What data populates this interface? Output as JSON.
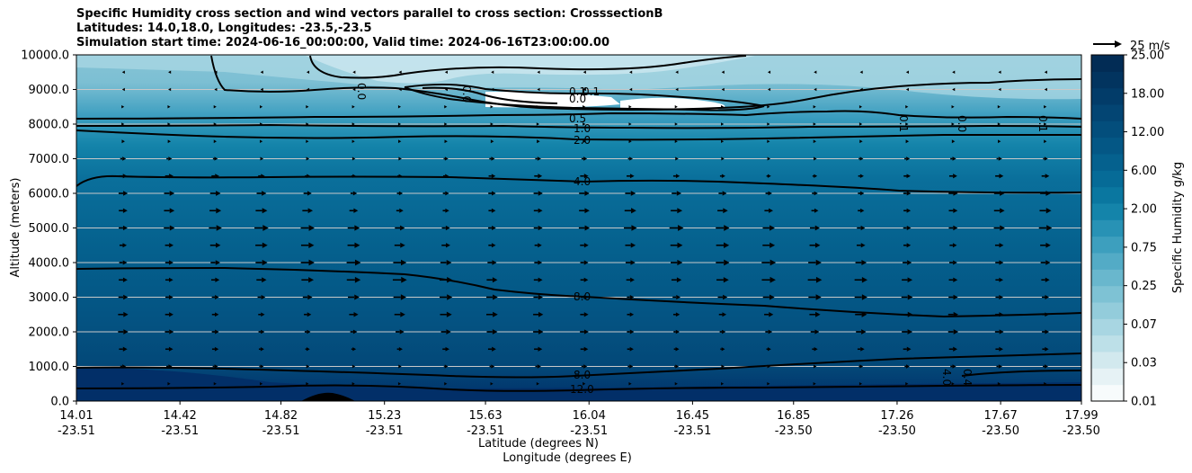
{
  "chart_data": {
    "type": "heatmap",
    "title_lines": [
      "Specific Humidity cross section and wind vectors parallel to cross section: CrosssectionB",
      "Latitudes: 14.0,18.0, Longitudes: -23.5,-23.5",
      "Simulation start time: 2024-06-16_00:00:00, Valid time: 2024-06-16T23:00:00.00"
    ],
    "xlabel": "Latitude (degrees N)",
    "xlabel2": "Longitude (degrees E)",
    "ylabel": "Altitude (meters)",
    "ylim": [
      0,
      10000
    ],
    "xlim": [
      14.01,
      17.99
    ],
    "y_ticks": [
      0,
      1000,
      2000,
      3000,
      4000,
      5000,
      6000,
      7000,
      8000,
      9000,
      10000
    ],
    "y_tick_labels": [
      "0.0",
      "1000.0",
      "2000.0",
      "3000.0",
      "4000.0",
      "5000.0",
      "6000.0",
      "7000.0",
      "8000.0",
      "9000.0",
      "10000.0"
    ],
    "x_ticks": [
      {
        "lat": "14.01",
        "lon": "-23.51",
        "value": 14.01
      },
      {
        "lat": "14.42",
        "lon": "-23.51",
        "value": 14.42
      },
      {
        "lat": "14.82",
        "lon": "-23.51",
        "value": 14.82
      },
      {
        "lat": "15.23",
        "lon": "-23.51",
        "value": 15.23
      },
      {
        "lat": "15.63",
        "lon": "-23.51",
        "value": 15.63
      },
      {
        "lat": "16.04",
        "lon": "-23.51",
        "value": 16.04
      },
      {
        "lat": "16.45",
        "lon": "-23.51",
        "value": 16.45
      },
      {
        "lat": "16.85",
        "lon": "-23.50",
        "value": 16.85
      },
      {
        "lat": "17.26",
        "lon": "-23.50",
        "value": 17.26
      },
      {
        "lat": "17.67",
        "lon": "-23.50",
        "value": 17.67
      },
      {
        "lat": "17.99",
        "lon": "-23.50",
        "value": 17.99
      }
    ],
    "grid": "horizontal",
    "colorbar": {
      "label": "Specific Humidity g/kg",
      "tick_labels": [
        "0.01",
        "0.03",
        "0.07",
        "0.25",
        "0.75",
        "2.00",
        "6.00",
        "12.00",
        "18.00",
        "25.00"
      ],
      "colors": [
        "#f7fbfc",
        "#e6f2f5",
        "#d2e9ee",
        "#bde0e8",
        "#a8d6e2",
        "#93ccdb",
        "#7ec2d4",
        "#69b7cd",
        "#53abc6",
        "#3d9fbe",
        "#2892b5",
        "#1484aa",
        "#0a77a0",
        "#066b97",
        "#05618e",
        "#045785",
        "#034e7c",
        "#034573",
        "#023c69",
        "#02345f",
        "#022c55"
      ]
    },
    "contour_lines": [
      {
        "level": "0.0",
        "altitude_m": 9000
      },
      {
        "level": "0.1",
        "altitude_m": 8750
      },
      {
        "level": "0.5",
        "altitude_m": 8100
      },
      {
        "level": "1.0",
        "altitude_m": 7900
      },
      {
        "level": "2.0",
        "altitude_m": 7600
      },
      {
        "level": "4.0",
        "altitude_m": 6400
      },
      {
        "level": "8.0",
        "altitude_m": 3000
      },
      {
        "level": "8.0",
        "altitude_m": 800
      },
      {
        "level": "12.0",
        "altitude_m": 350
      }
    ],
    "contour_labels": [
      "0.0",
      "0.0",
      "0.1",
      "0.0",
      "0.1",
      "0.0",
      "0.5",
      "1.0",
      "2.0",
      "4.0",
      "8.0",
      "8.0",
      "12.0",
      "0.1",
      "0.0",
      "0.1",
      "0.4",
      "4.0"
    ],
    "quiver_key": {
      "label": "25 m/s",
      "speed_ms": 25
    },
    "wind_vectors_ms": [
      {
        "altitude_m": 9500,
        "speed": -1
      },
      {
        "altitude_m": 9000,
        "speed": -1
      },
      {
        "altitude_m": 8500,
        "speed": 1
      },
      {
        "altitude_m": 8000,
        "speed": 2
      },
      {
        "altitude_m": 7500,
        "speed": 3
      },
      {
        "altitude_m": 7000,
        "speed": 5
      },
      {
        "altitude_m": 6500,
        "speed": 7
      },
      {
        "altitude_m": 6000,
        "speed": 9
      },
      {
        "altitude_m": 5500,
        "speed": 10
      },
      {
        "altitude_m": 5000,
        "speed": 12
      },
      {
        "altitude_m": 4500,
        "speed": 11
      },
      {
        "altitude_m": 4000,
        "speed": 12
      },
      {
        "altitude_m": 3500,
        "speed": 12
      },
      {
        "altitude_m": 3000,
        "speed": 11
      },
      {
        "altitude_m": 2500,
        "speed": 10
      },
      {
        "altitude_m": 2000,
        "speed": 9
      },
      {
        "altitude_m": 1500,
        "speed": 7
      },
      {
        "altitude_m": 1000,
        "speed": 5
      },
      {
        "altitude_m": 500,
        "speed": 2
      }
    ]
  }
}
